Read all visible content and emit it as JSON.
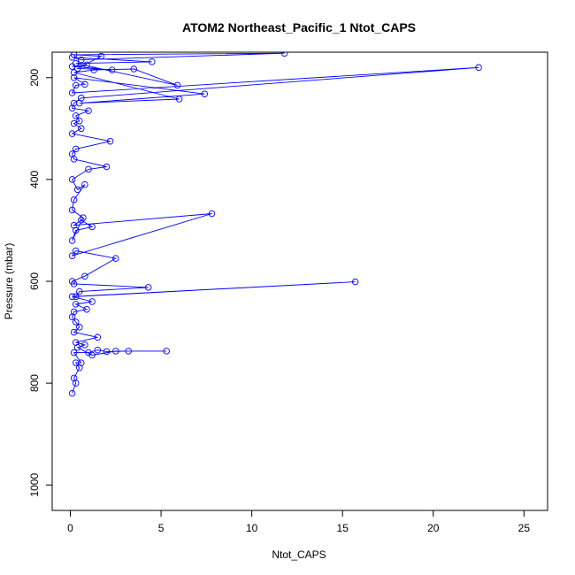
{
  "chart_data": {
    "type": "line",
    "title": "ATOM2 Northeast_Pacific_1 Ntot_CAPS",
    "xlabel": "Ntot_CAPS",
    "ylabel": "Pressure (mbar)",
    "xlim": [
      -1,
      26.3
    ],
    "ylim": [
      1050,
      150
    ],
    "y_reversed": true,
    "x_ticks": [
      0,
      5,
      10,
      15,
      20,
      25
    ],
    "y_ticks": [
      200,
      400,
      600,
      800,
      1000
    ],
    "grid": false,
    "legend": "none",
    "series": [
      {
        "color": "#0000ff",
        "marker": "open-circle",
        "points": [
          [
            0.1,
            820
          ],
          [
            0.3,
            800
          ],
          [
            0.2,
            790
          ],
          [
            0.5,
            770
          ],
          [
            0.3,
            760
          ],
          [
            0.6,
            760
          ],
          [
            0.2,
            740
          ],
          [
            1.0,
            740
          ],
          [
            1.5,
            735
          ],
          [
            2.0,
            738
          ],
          [
            3.2,
            737
          ],
          [
            5.3,
            737
          ],
          [
            2.5,
            737
          ],
          [
            1.2,
            745
          ],
          [
            0.4,
            730
          ],
          [
            0.8,
            725
          ],
          [
            0.3,
            720
          ],
          [
            1.5,
            710
          ],
          [
            0.2,
            700
          ],
          [
            0.5,
            690
          ],
          [
            0.3,
            680
          ],
          [
            0.1,
            670
          ],
          [
            0.2,
            660
          ],
          [
            0.9,
            655
          ],
          [
            0.3,
            645
          ],
          [
            1.2,
            640
          ],
          [
            0.1,
            630
          ],
          [
            15.7,
            601
          ],
          [
            0.3,
            630
          ],
          [
            0.5,
            620
          ],
          [
            4.3,
            612
          ],
          [
            0.2,
            605
          ],
          [
            0.1,
            600
          ],
          [
            0.8,
            590
          ],
          [
            2.5,
            555
          ],
          [
            0.3,
            540
          ],
          [
            0.1,
            550
          ],
          [
            7.8,
            467
          ],
          [
            0.2,
            490
          ],
          [
            0.6,
            480
          ],
          [
            1.2,
            493
          ],
          [
            0.3,
            500
          ],
          [
            0.1,
            520
          ],
          [
            0.7,
            475
          ],
          [
            0.1,
            460
          ],
          [
            0.2,
            440
          ],
          [
            0.8,
            410
          ],
          [
            0.4,
            420
          ],
          [
            0.1,
            400
          ],
          [
            1.0,
            380
          ],
          [
            2.0,
            375
          ],
          [
            0.2,
            360
          ],
          [
            0.1,
            350
          ],
          [
            0.3,
            340
          ],
          [
            2.2,
            325
          ],
          [
            0.1,
            310
          ],
          [
            0.6,
            300
          ],
          [
            0.2,
            290
          ],
          [
            0.5,
            285
          ],
          [
            0.3,
            275
          ],
          [
            1.0,
            265
          ],
          [
            0.1,
            260
          ],
          [
            0.2,
            250
          ],
          [
            0.6,
            240
          ],
          [
            22.5,
            180
          ],
          [
            0.1,
            230
          ],
          [
            0.3,
            215
          ],
          [
            0.8,
            213
          ],
          [
            0.2,
            200
          ],
          [
            7.4,
            232
          ],
          [
            0.5,
            250
          ],
          [
            6.0,
            242
          ],
          [
            0.2,
            190
          ],
          [
            1.3,
            185
          ],
          [
            3.5,
            183
          ],
          [
            5.9,
            215
          ],
          [
            0.3,
            172
          ],
          [
            4.5,
            169
          ],
          [
            0.1,
            160
          ],
          [
            0.6,
            165
          ],
          [
            11.8,
            152
          ],
          [
            0.2,
            155
          ],
          [
            1.7,
            158
          ],
          [
            0.4,
            182
          ],
          [
            2.3,
            185
          ],
          [
            0.1,
            178
          ],
          [
            0.9,
            175
          ]
        ]
      }
    ]
  }
}
